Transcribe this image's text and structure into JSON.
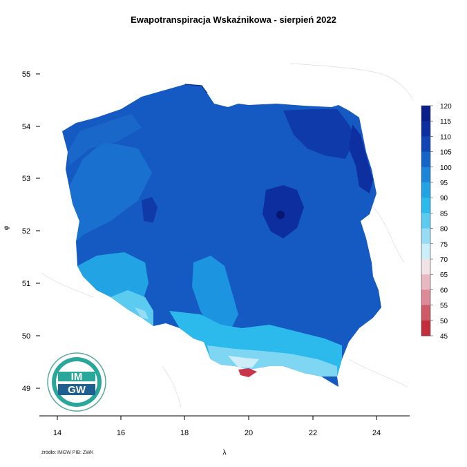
{
  "title": "Ewapotranspiracja Wskaźnikowa - sierpień 2022",
  "source": "źródło: IMGW PIB: ZWK",
  "axes": {
    "xlabel": "λ",
    "ylabel": "φ",
    "x_ticks": [
      "14",
      "16",
      "18",
      "20",
      "22",
      "24"
    ],
    "y_ticks": [
      "55",
      "54",
      "53",
      "52",
      "51",
      "50",
      "49"
    ]
  },
  "legend": {
    "labels": [
      "120",
      "115",
      "110",
      "105",
      "100",
      "95",
      "90",
      "85",
      "80",
      "75",
      "70",
      "65",
      "60",
      "55",
      "50",
      "45"
    ],
    "colors": [
      "#0a1f8a",
      "#0d2fa0",
      "#1145b5",
      "#1565c8",
      "#1b86d8",
      "#22a3e4",
      "#2cb9ec",
      "#5ccbf0",
      "#95dcf4",
      "#cbeefa",
      "#f1e2e6",
      "#e8b9c1",
      "#dc8a95",
      "#cf5b68",
      "#c32d3c",
      "#c00000"
    ]
  },
  "logo": {
    "text_top": "IM",
    "text_bottom": "GW",
    "ring_color": "#2aa79b"
  },
  "region_colors": {
    "main": "#1559c2",
    "west": "#1b74d0",
    "dark": "#0c2e9e",
    "center_light": "#1c94df",
    "south_light": "#40bde9",
    "mountain": "#9be0f0",
    "red": "#c9364a"
  }
}
